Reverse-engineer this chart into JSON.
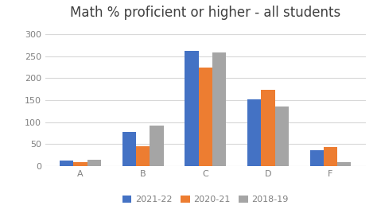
{
  "title": "Math % proficient or higher - all students",
  "categories": [
    "A",
    "B",
    "C",
    "D",
    "F"
  ],
  "series": {
    "2021-22": [
      12,
      77,
      263,
      152,
      36
    ],
    "2020-21": [
      10,
      45,
      225,
      173,
      43
    ],
    "2018-19": [
      15,
      93,
      259,
      136,
      10
    ]
  },
  "series_order": [
    "2021-22",
    "2020-21",
    "2018-19"
  ],
  "colors": {
    "2021-22": "#4472C4",
    "2020-21": "#ED7D31",
    "2018-19": "#A5A5A5"
  },
  "ylim": [
    0,
    320
  ],
  "yticks": [
    0,
    50,
    100,
    150,
    200,
    250,
    300
  ],
  "bar_width": 0.22,
  "background_color": "#ffffff",
  "title_fontsize": 12,
  "tick_fontsize": 8,
  "legend_fontsize": 8,
  "title_color": "#404040",
  "tick_color": "#808080",
  "grid_color": "#d8d8d8"
}
